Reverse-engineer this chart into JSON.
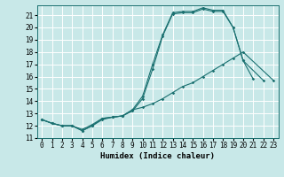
{
  "title": "",
  "xlabel": "Humidex (Indice chaleur)",
  "bg_color": "#c8e8e8",
  "grid_color": "#ffffff",
  "line_color": "#1a7070",
  "xlim": [
    -0.5,
    23.5
  ],
  "ylim": [
    11.0,
    21.8
  ],
  "yticks": [
    11,
    12,
    13,
    14,
    15,
    16,
    17,
    18,
    19,
    20,
    21
  ],
  "xticks": [
    0,
    1,
    2,
    3,
    4,
    5,
    6,
    7,
    8,
    9,
    10,
    11,
    12,
    13,
    14,
    15,
    16,
    17,
    18,
    19,
    20,
    21,
    22,
    23
  ],
  "series1_x": [
    0,
    1,
    2,
    3,
    4,
    5,
    6,
    7,
    8,
    9,
    10,
    11,
    12,
    13,
    14,
    15,
    16,
    17,
    18,
    19,
    20,
    21
  ],
  "series1_y": [
    12.5,
    12.2,
    12.0,
    12.0,
    11.6,
    12.0,
    12.5,
    12.7,
    12.8,
    13.2,
    14.2,
    16.6,
    19.3,
    21.1,
    21.2,
    21.2,
    21.5,
    21.3,
    21.3,
    20.0,
    17.3,
    15.8
  ],
  "series2_x": [
    0,
    1,
    2,
    3,
    4,
    5,
    6,
    7,
    8,
    9,
    10,
    11,
    12,
    13,
    14,
    15,
    16,
    17,
    18,
    19,
    20,
    22
  ],
  "series2_y": [
    12.5,
    12.2,
    12.0,
    12.0,
    11.6,
    12.0,
    12.6,
    12.7,
    12.8,
    13.3,
    14.4,
    17.0,
    19.4,
    21.2,
    21.3,
    21.3,
    21.6,
    21.4,
    21.4,
    20.0,
    17.3,
    15.7
  ],
  "series3_x": [
    0,
    1,
    2,
    3,
    4,
    5,
    6,
    7,
    8,
    9,
    10,
    11,
    12,
    13,
    14,
    15,
    16,
    17,
    18,
    19,
    20,
    23
  ],
  "series3_y": [
    12.5,
    12.2,
    12.0,
    12.0,
    11.7,
    12.1,
    12.6,
    12.7,
    12.8,
    13.3,
    13.5,
    13.8,
    14.2,
    14.7,
    15.2,
    15.5,
    16.0,
    16.5,
    17.0,
    17.5,
    18.0,
    15.7
  ],
  "tick_fontsize": 5.5,
  "xlabel_fontsize": 6.5,
  "lw": 0.8,
  "ms": 1.8
}
